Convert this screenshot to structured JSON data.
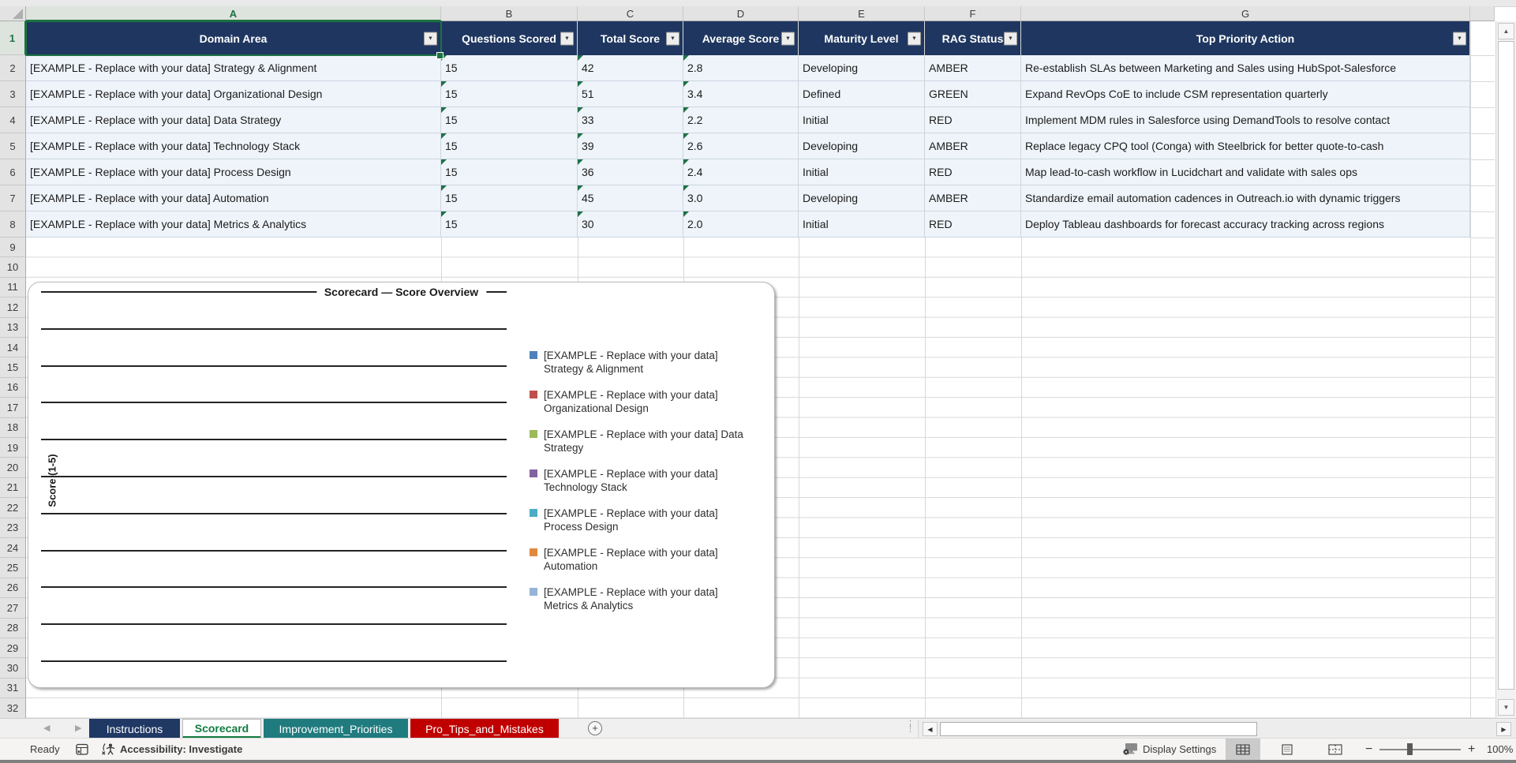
{
  "columns": [
    "A",
    "B",
    "C",
    "D",
    "E",
    "F",
    "G"
  ],
  "row_numbers": [
    1,
    2,
    3,
    4,
    5,
    6,
    7,
    8,
    9,
    10,
    11,
    12,
    13,
    14,
    15,
    16,
    17,
    18,
    19,
    20,
    21,
    22,
    23,
    24,
    25,
    26,
    27,
    28,
    29,
    30,
    31,
    32
  ],
  "table": {
    "headers": [
      "Domain Area",
      "Questions Scored",
      "Total Score",
      "Average Score",
      "Maturity Level",
      "RAG Status",
      "Top Priority Action"
    ],
    "rows": [
      {
        "domain_area": "[EXAMPLE - Replace with your data] Strategy & Alignment",
        "questions_scored": "15",
        "total_score": "42",
        "average_score": "2.8",
        "maturity_level": "Developing",
        "rag_status": "AMBER",
        "top_priority_action": "Re-establish SLAs between Marketing and Sales using HubSpot-Salesforce"
      },
      {
        "domain_area": "[EXAMPLE - Replace with your data] Organizational Design",
        "questions_scored": "15",
        "total_score": "51",
        "average_score": "3.4",
        "maturity_level": "Defined",
        "rag_status": "GREEN",
        "top_priority_action": "Expand RevOps CoE to include CSM representation quarterly"
      },
      {
        "domain_area": "[EXAMPLE - Replace with your data] Data Strategy",
        "questions_scored": "15",
        "total_score": "33",
        "average_score": "2.2",
        "maturity_level": "Initial",
        "rag_status": "RED",
        "top_priority_action": "Implement MDM rules in Salesforce using DemandTools to resolve contact"
      },
      {
        "domain_area": "[EXAMPLE - Replace with your data] Technology Stack",
        "questions_scored": "15",
        "total_score": "39",
        "average_score": "2.6",
        "maturity_level": "Developing",
        "rag_status": "AMBER",
        "top_priority_action": "Replace legacy CPQ tool (Conga) with Steelbrick for better quote-to-cash"
      },
      {
        "domain_area": "[EXAMPLE - Replace with your data] Process Design",
        "questions_scored": "15",
        "total_score": "36",
        "average_score": "2.4",
        "maturity_level": "Initial",
        "rag_status": "RED",
        "top_priority_action": "Map lead-to-cash workflow in Lucidchart and validate with sales ops"
      },
      {
        "domain_area": "[EXAMPLE - Replace with your data] Automation",
        "questions_scored": "15",
        "total_score": "45",
        "average_score": "3.0",
        "maturity_level": "Developing",
        "rag_status": "AMBER",
        "top_priority_action": "Standardize email automation cadences in Outreach.io with dynamic triggers"
      },
      {
        "domain_area": "[EXAMPLE - Replace with your data] Metrics & Analytics",
        "questions_scored": "15",
        "total_score": "30",
        "average_score": "2.0",
        "maturity_level": "Initial",
        "rag_status": "RED",
        "top_priority_action": "Deploy Tableau dashboards for forecast accuracy tracking across regions"
      }
    ]
  },
  "chart": {
    "title": "Scorecard — Score Overview",
    "y_axis_label": "Score (1-5)",
    "legend": [
      {
        "label": "[EXAMPLE - Replace with your data] Strategy & Alignment",
        "color": "#4F81BD"
      },
      {
        "label": "[EXAMPLE - Replace with your data] Organizational Design",
        "color": "#C0504D"
      },
      {
        "label": "[EXAMPLE - Replace with your data] Data Strategy",
        "color": "#9BBB59"
      },
      {
        "label": "[EXAMPLE - Replace with your data] Technology Stack",
        "color": "#8064A2"
      },
      {
        "label": "[EXAMPLE - Replace with your data] Process Design",
        "color": "#4BACC6"
      },
      {
        "label": "[EXAMPLE - Replace with your data] Automation",
        "color": "#E0883F"
      },
      {
        "label": "[EXAMPLE - Replace with your data] Metrics & Analytics",
        "color": "#95B3D7"
      }
    ]
  },
  "sheet_tabs": [
    {
      "label": "Instructions",
      "background": "#1F3864",
      "text_color": "#FFFFFF",
      "active": false
    },
    {
      "label": "Scorecard",
      "background": "#FFFFFF",
      "text_color": "#107C41",
      "active": true
    },
    {
      "label": "Improvement_Priorities",
      "background": "#1F7B7E",
      "text_color": "#FFFFFF",
      "active": false
    },
    {
      "label": "Pro_Tips_and_Mistakes",
      "background": "#C00000",
      "text_color": "#FFFFFF",
      "active": false
    }
  ],
  "status_bar": {
    "ready_label": "Ready",
    "accessibility_label": "Accessibility: Investigate",
    "display_settings_label": "Display Settings",
    "zoom_level": "100%"
  },
  "colors": {
    "table_header_bg": "#1F3760",
    "table_header_text": "#FFFFFF",
    "data_row_bg": "#EFF4FA",
    "selection_green": "#1A7340",
    "error_indicator_green": "#1E7145",
    "active_sheet_tab_green": "#107C41"
  }
}
